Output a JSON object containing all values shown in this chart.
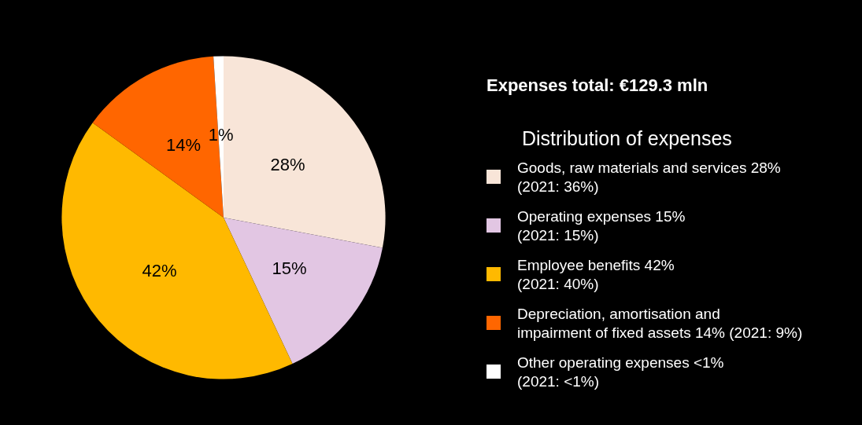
{
  "chart_data": {
    "type": "pie",
    "title": "Expenses total: €129.3 mln",
    "legend_title": "Distribution of expenses",
    "categories": [
      "Goods, raw materials and services 28%\n(2021: 36%)",
      "Operating expenses 15%\n(2021: 15%)",
      "Employee benefits 42%\n(2021: 40%)",
      "Depreciation, amortisation and\nimpairment of fixed assets 14% (2021: 9%)",
      "Other operating expenses <1%\n(2021: <1%)"
    ],
    "values": [
      28,
      15,
      42,
      14,
      1
    ],
    "value_labels": [
      "28%",
      "15%",
      "42%",
      "14%",
      "1%"
    ],
    "colors": [
      "#f8e5d8",
      "#e2c6e3",
      "#ffb900",
      "#ff6600",
      "#ffffff"
    ],
    "legend": "right"
  }
}
